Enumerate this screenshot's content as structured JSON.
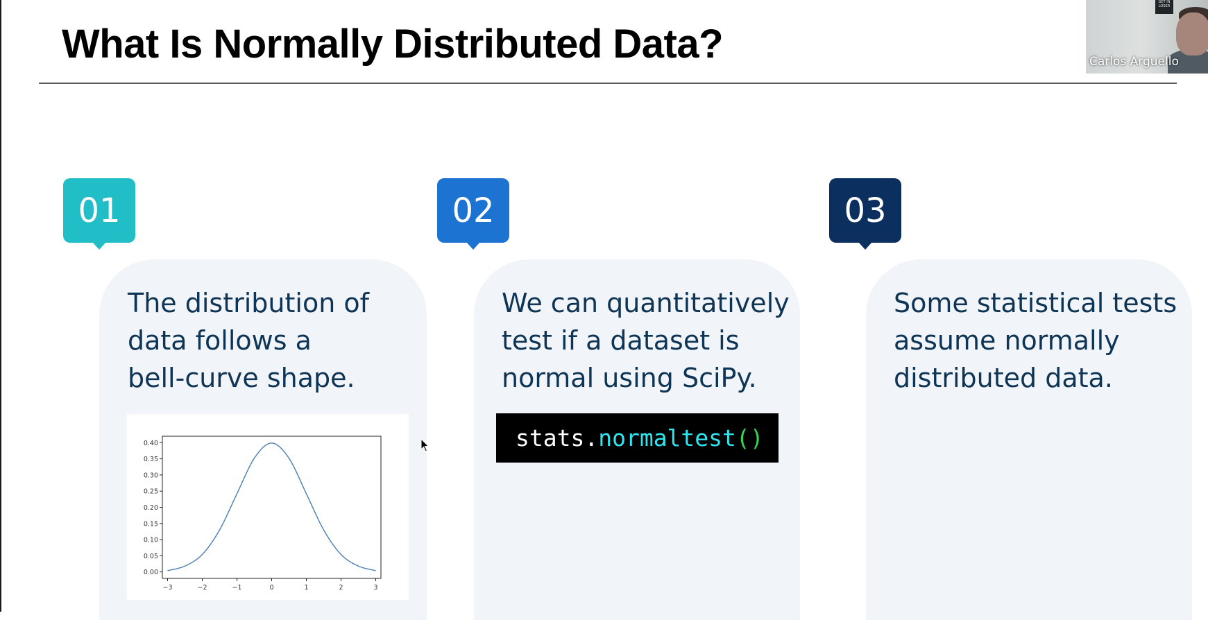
{
  "slide": {
    "title": "What Is Normally Distributed Data?",
    "cards": [
      {
        "number": "01",
        "color": "#22bec8",
        "lines": [
          "The distribution of",
          "data follows a",
          "bell-curve shape."
        ]
      },
      {
        "number": "02",
        "color": "#1c73d2",
        "lines": [
          "We can quantitatively",
          "test if a dataset is",
          "normal using SciPy."
        ]
      },
      {
        "number": "03",
        "color": "#0b2f5e",
        "lines": [
          "Some statistical tests",
          "assume normally",
          "distributed data."
        ]
      }
    ],
    "code": {
      "object": "stats",
      "dot": ".",
      "function": "normaltest",
      "parens": "()"
    }
  },
  "chart_data": {
    "type": "line",
    "title": "",
    "xlabel": "",
    "ylabel": "",
    "xlim": [
      -3.15,
      3.15
    ],
    "ylim": [
      -0.02,
      0.42
    ],
    "x_ticks": [
      "−3",
      "−2",
      "−1",
      "0",
      "1",
      "2",
      "3"
    ],
    "y_ticks": [
      "0.00",
      "0.05",
      "0.10",
      "0.15",
      "0.20",
      "0.25",
      "0.30",
      "0.35",
      "0.40"
    ],
    "series": [
      {
        "x": [
          -3,
          -2.5,
          -2,
          -1.5,
          -1,
          -0.5,
          0,
          0.5,
          1,
          1.5,
          2,
          2.5,
          3
        ],
        "y": [
          0.004,
          0.018,
          0.054,
          0.13,
          0.242,
          0.352,
          0.399,
          0.352,
          0.242,
          0.13,
          0.054,
          0.018,
          0.004
        ],
        "color": "#4c7fb0"
      }
    ],
    "grid": false,
    "legend": "none"
  },
  "video": {
    "speaker_name": "Carlos Arguello",
    "poster_text": "GET IN LOSER"
  }
}
